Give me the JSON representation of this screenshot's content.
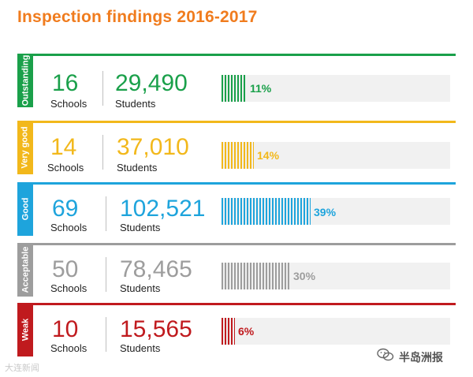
{
  "title": "Inspection findings 2016-2017",
  "chart_data": {
    "type": "bar",
    "title": "Inspection findings 2016-2017",
    "categories": [
      "Outstanding",
      "Very good",
      "Good",
      "Acceptable",
      "Weak"
    ],
    "series": [
      {
        "values": [
          11,
          14,
          39,
          30,
          6
        ]
      }
    ],
    "unit": "%",
    "ylim": [
      0,
      100
    ]
  },
  "rows": [
    {
      "rating": "Outstanding",
      "schools": "16",
      "schools_label": "Schools",
      "students": "29,490",
      "students_label": "Students",
      "percent": 11,
      "percent_label": "11%",
      "color": "#1aa04a"
    },
    {
      "rating": "Very good",
      "schools": "14",
      "schools_label": "Schools",
      "students": "37,010",
      "students_label": "Students",
      "percent": 14,
      "percent_label": "14%",
      "color": "#f2b81b"
    },
    {
      "rating": "Good",
      "schools": "69",
      "schools_label": "Schools",
      "students": "102,521",
      "students_label": "Students",
      "percent": 39,
      "percent_label": "39%",
      "color": "#1ea4dc"
    },
    {
      "rating": "Acceptable",
      "schools": "50",
      "schools_label": "Schools",
      "students": "78,465",
      "students_label": "Students",
      "percent": 30,
      "percent_label": "30%",
      "color": "#9d9d9d"
    },
    {
      "rating": "Weak",
      "schools": "10",
      "schools_label": "Schools",
      "students": "15,565",
      "students_label": "Students",
      "percent": 6,
      "percent_label": "6%",
      "color": "#c01a1e"
    }
  ],
  "watermark_left": "大连新闻",
  "watermark_right": "半岛洲报",
  "watermark_logo_icon": "wechat-icon"
}
